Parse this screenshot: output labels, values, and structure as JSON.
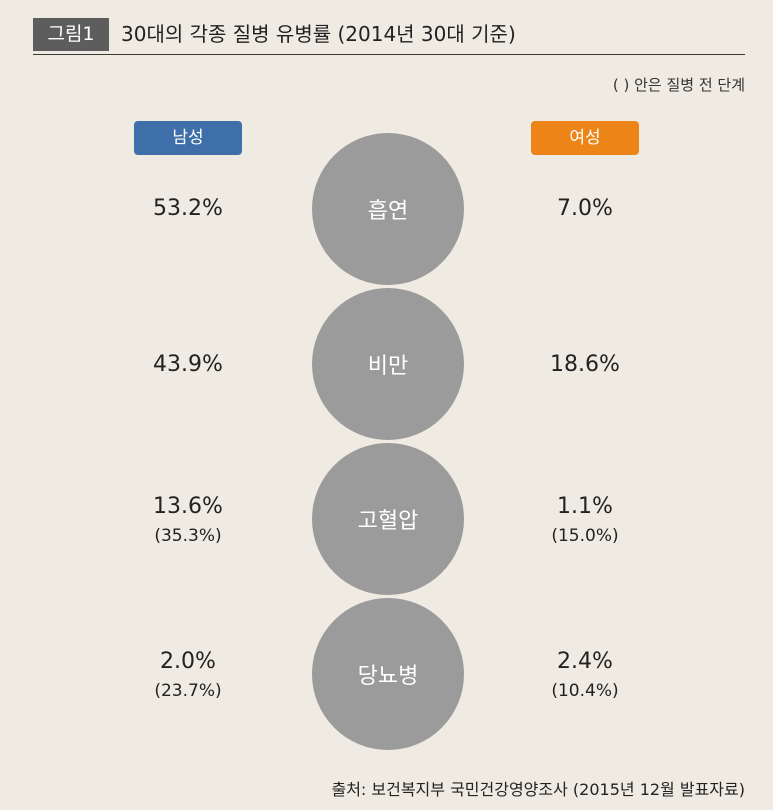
{
  "header": {
    "figure_label": "그림1",
    "title": "30대의 각종 질병 유병률 (2014년 30대 기준)"
  },
  "note": "(   ) 안은 질병 전 단계",
  "legend": {
    "male": "남성",
    "female": "여성"
  },
  "colors": {
    "male": "#3f6fa8",
    "female": "#ec8418",
    "circle": "#9b9b9b",
    "background": "#efebe2"
  },
  "chart_data": {
    "type": "table",
    "title": "30대의 각종 질병 유병률 (2014년 30대 기준)",
    "rows": [
      {
        "disease": "흡연",
        "male": "53.2%",
        "male_sub": "",
        "female": "7.0%",
        "female_sub": ""
      },
      {
        "disease": "비만",
        "male": "43.9%",
        "male_sub": "",
        "female": "18.6%",
        "female_sub": ""
      },
      {
        "disease": "고혈압",
        "male": "13.6%",
        "male_sub": "(35.3%)",
        "female": "1.1%",
        "female_sub": "(15.0%)"
      },
      {
        "disease": "당뇨병",
        "male": "2.0%",
        "male_sub": "(23.7%)",
        "female": "2.4%",
        "female_sub": "(10.4%)"
      }
    ]
  },
  "source": "출처: 보건복지부 국민건강영양조사 (2015년 12월 발표자료)"
}
